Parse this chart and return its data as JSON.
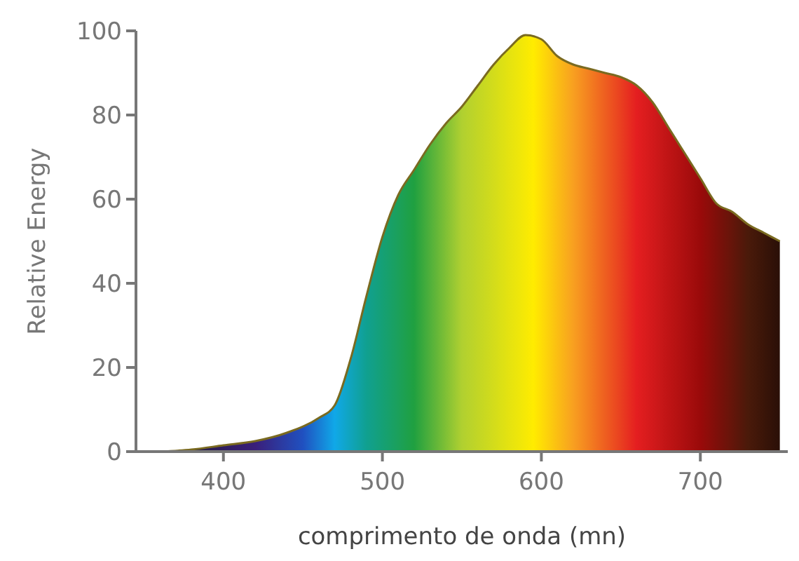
{
  "chart_data": {
    "type": "area",
    "xlabel": "comprimento de onda (mn)",
    "ylabel": "Relative Energy",
    "xlim": [
      345,
      755
    ],
    "ylim": [
      0,
      100
    ],
    "xticks": [
      400,
      500,
      600,
      700
    ],
    "yticks": [
      0,
      20,
      40,
      60,
      80,
      100
    ],
    "series": [
      {
        "color": "#7a6a20",
        "x": [
          360,
          380,
          400,
          420,
          440,
          460,
          470,
          480,
          490,
          500,
          510,
          520,
          530,
          540,
          550,
          560,
          570,
          580,
          590,
          600,
          610,
          620,
          630,
          640,
          650,
          660,
          670,
          680,
          690,
          700,
          710,
          720,
          730,
          740,
          750
        ],
        "values": [
          0,
          0.5,
          1.5,
          2.5,
          4.5,
          8,
          11,
          22,
          37,
          51,
          61,
          67,
          73,
          78,
          82,
          87,
          92,
          96,
          99,
          98,
          94,
          92,
          91,
          90,
          89,
          87,
          83,
          77,
          71,
          65,
          59,
          57,
          54,
          52,
          50
        ]
      }
    ]
  }
}
